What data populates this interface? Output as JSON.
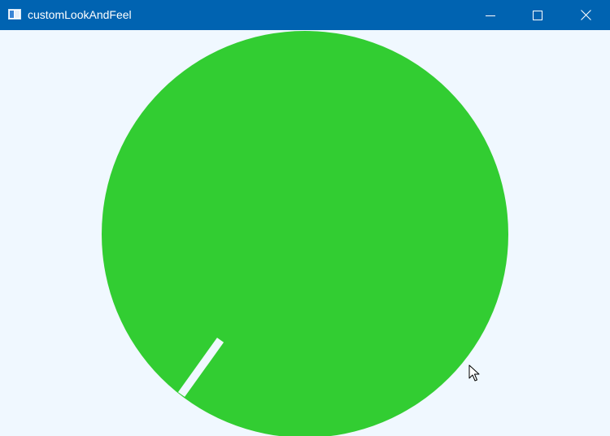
{
  "window": {
    "title": "customLookAndFeel",
    "icon": "window-app-icon",
    "controls": {
      "minimize_icon": "minimize-icon",
      "maximize_icon": "maximize-icon",
      "close_icon": "close-icon"
    }
  },
  "knob": {
    "type": "rotary-knob",
    "fill_color": "#32cd32",
    "indicator_color": "#f0f8ff",
    "value_fraction": 0.0
  },
  "colors": {
    "titlebar": "#0063b1",
    "background": "#f0f8ff"
  }
}
